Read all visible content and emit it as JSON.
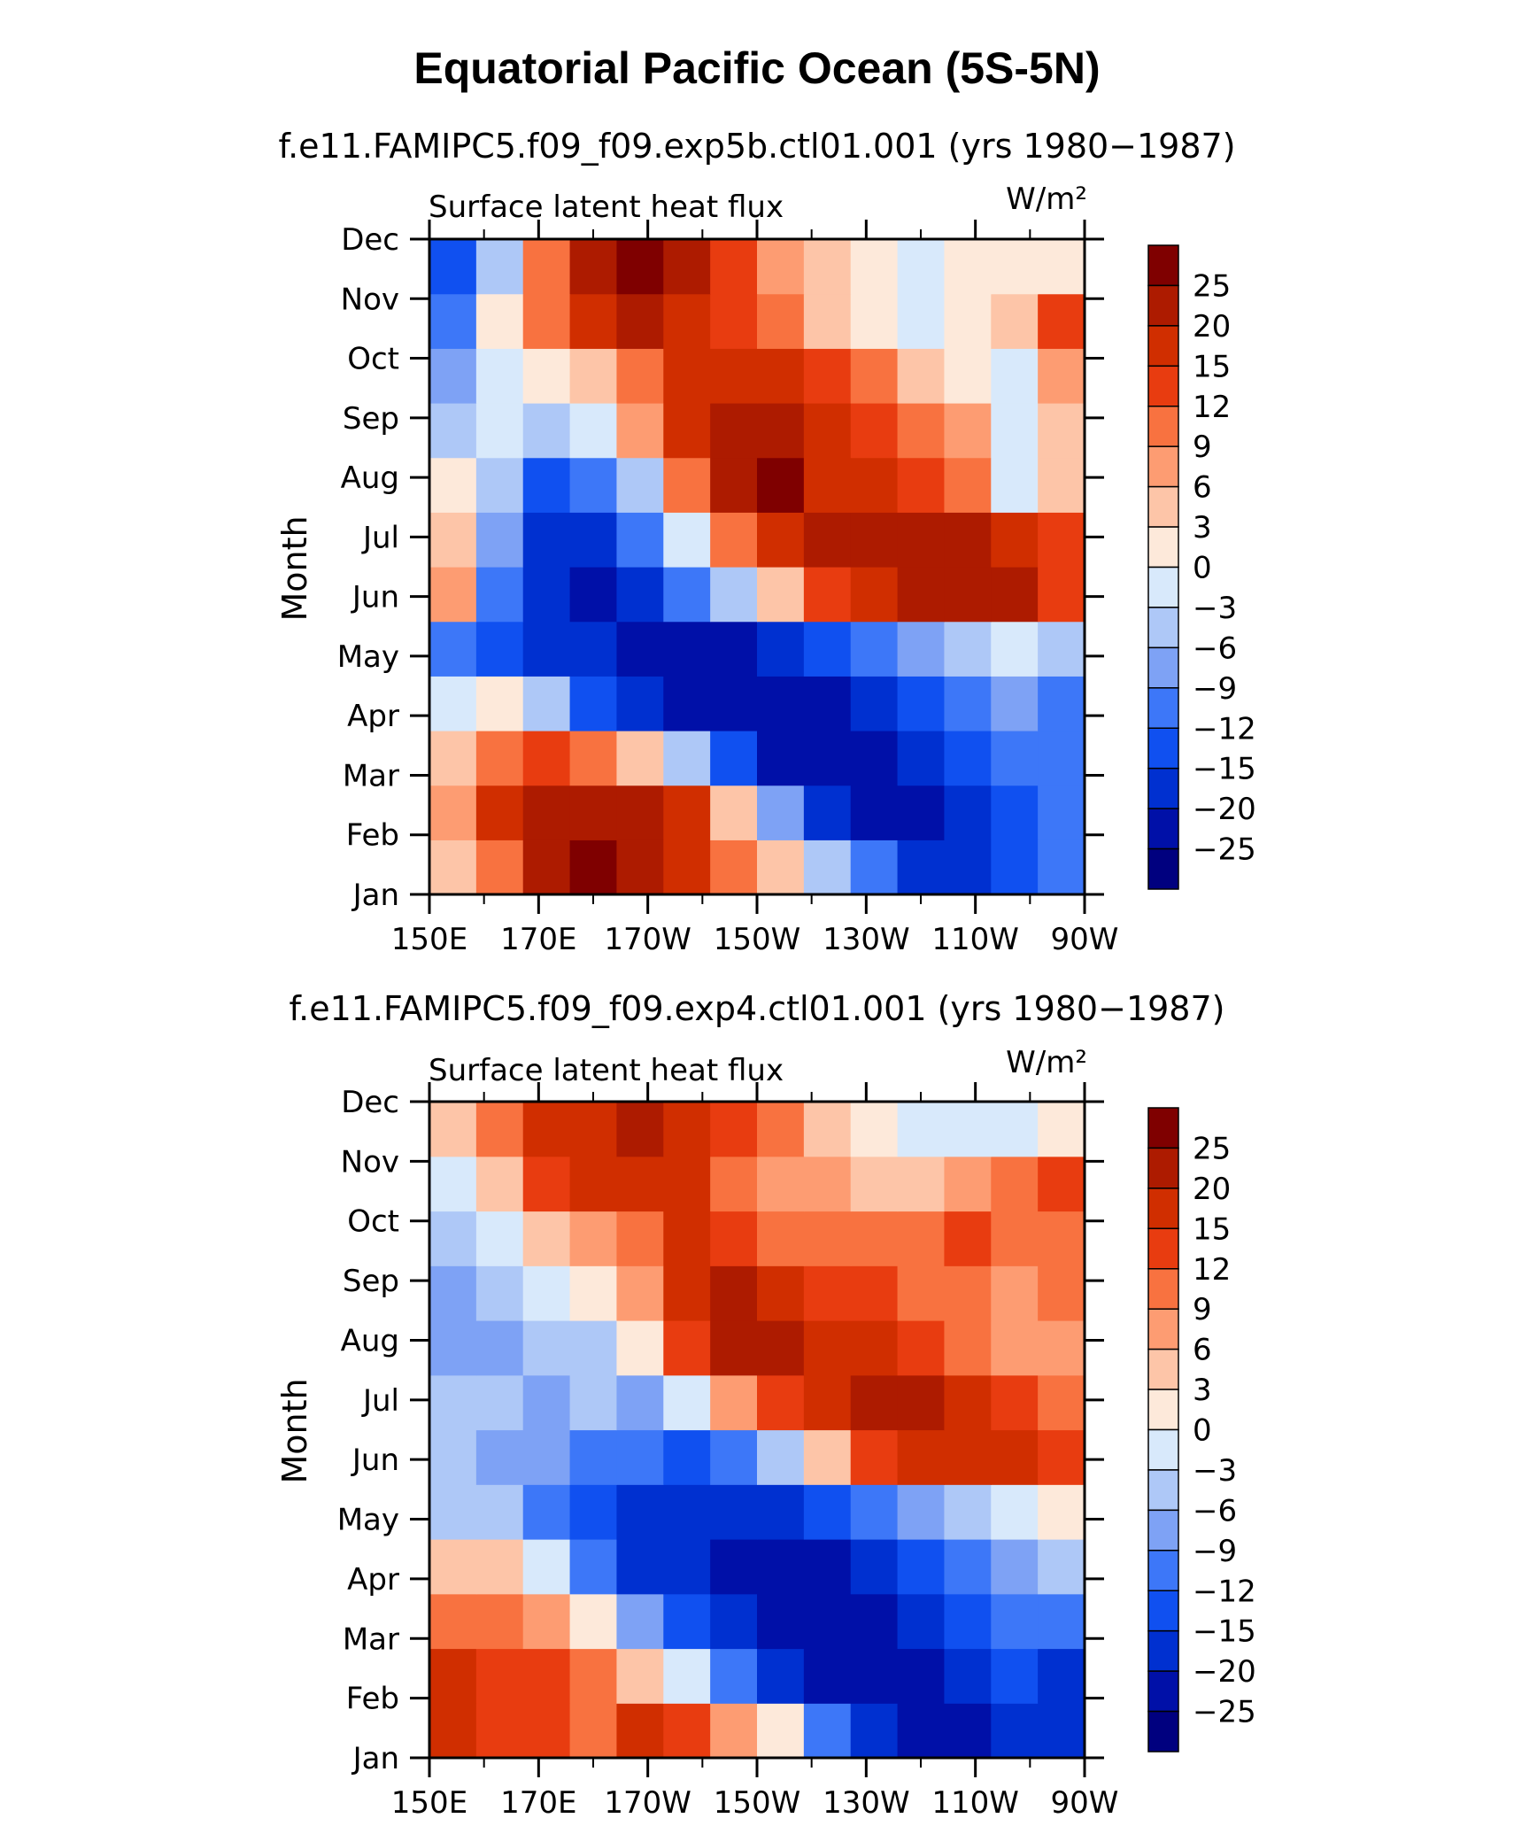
{
  "title": "Equatorial Pacific Ocean (5S-5N)",
  "colors": [
    "#00007f",
    "#0010a8",
    "#0030d0",
    "#1050f0",
    "#3d77f8",
    "#7ea2f5",
    "#aec8f7",
    "#d8e9fb",
    "#fde9da",
    "#fdc5a8",
    "#fd9c72",
    "#f87240",
    "#e83c10",
    "#d02e00",
    "#ad1b00",
    "#7f0000"
  ],
  "chart_data": [
    {
      "type": "heatmap",
      "subtitle": "f.e11.FAMIPC5.f09_f09.exp5b.ctl01.001 (yrs 1980−1987)",
      "variable": "Surface latent heat flux",
      "units": "W/m²",
      "xlabel": "",
      "ylabel": "Month",
      "xticks": [
        "150E",
        "170E",
        "170W",
        "150W",
        "130W",
        "110W",
        "90W"
      ],
      "yticks": [
        "Jan",
        "Feb",
        "Mar",
        "Apr",
        "May",
        "Jun",
        "Jul",
        "Aug",
        "Sep",
        "Oct",
        "Nov",
        "Dec"
      ],
      "colorbar_levels": [
        "25",
        "20",
        "15",
        "12",
        "9",
        "6",
        "3",
        "0",
        "−3",
        "−6",
        "−9",
        "−12",
        "−15",
        "−20",
        "−25"
      ],
      "description_values_by_month": {
        "Jan": [
          3,
          9,
          20,
          25,
          22,
          15,
          9,
          3,
          -6,
          -12,
          -20,
          -20,
          -15,
          -12
        ],
        "Feb": [
          6,
          15,
          20,
          22,
          20,
          15,
          3,
          -9,
          -20,
          -25,
          -25,
          -20,
          -15,
          -12
        ],
        "Mar": [
          3,
          9,
          12,
          9,
          3,
          -6,
          -15,
          -25,
          -25,
          -25,
          -20,
          -15,
          -12,
          -12
        ],
        "Apr": [
          -3,
          0,
          -6,
          -15,
          -20,
          -25,
          -25,
          -25,
          -25,
          -20,
          -15,
          -12,
          -9,
          -12
        ],
        "May": [
          -12,
          -15,
          -20,
          -20,
          -25,
          -25,
          -25,
          -20,
          -15,
          -12,
          -9,
          -6,
          -3,
          -6
        ],
        "Jun": [
          6,
          -12,
          -20,
          -25,
          -20,
          -12,
          -6,
          3,
          12,
          15,
          20,
          20,
          20,
          12
        ],
        "Jul": [
          3,
          -9,
          -20,
          -20,
          -12,
          -3,
          9,
          15,
          20,
          20,
          20,
          20,
          15,
          12
        ],
        "Aug": [
          0,
          -6,
          -15,
          -12,
          -6,
          9,
          20,
          25,
          15,
          15,
          12,
          9,
          -3,
          3
        ],
        "Sep": [
          -6,
          -3,
          -6,
          -3,
          6,
          15,
          20,
          20,
          15,
          12,
          9,
          6,
          -3,
          3
        ],
        "Oct": [
          -9,
          -3,
          0,
          3,
          9,
          15,
          15,
          15,
          12,
          9,
          3,
          0,
          -3,
          6
        ],
        "Nov": [
          -12,
          0,
          9,
          15,
          20,
          15,
          12,
          9,
          3,
          0,
          -3,
          0,
          3,
          12
        ],
        "Dec": [
          -15,
          -6,
          9,
          20,
          25,
          20,
          12,
          6,
          3,
          0,
          -3,
          0,
          0,
          0
        ]
      }
    },
    {
      "type": "heatmap",
      "subtitle": "f.e11.FAMIPC5.f09_f09.exp4.ctl01.001 (yrs 1980−1987)",
      "variable": "Surface latent heat flux",
      "units": "W/m²",
      "xlabel": "",
      "ylabel": "Month",
      "xticks": [
        "150E",
        "170E",
        "170W",
        "150W",
        "130W",
        "110W",
        "90W"
      ],
      "yticks": [
        "Jan",
        "Feb",
        "Mar",
        "Apr",
        "May",
        "Jun",
        "Jul",
        "Aug",
        "Sep",
        "Oct",
        "Nov",
        "Dec"
      ],
      "colorbar_levels": [
        "25",
        "20",
        "15",
        "12",
        "9",
        "6",
        "3",
        "0",
        "−3",
        "−6",
        "−9",
        "−12",
        "−15",
        "−20",
        "−25"
      ],
      "description_values_by_month": {
        "Jan": [
          15,
          12,
          12,
          9,
          15,
          12,
          6,
          0,
          -12,
          -20,
          -25,
          -25,
          -20,
          -20
        ],
        "Feb": [
          15,
          12,
          12,
          9,
          3,
          -3,
          -12,
          -20,
          -25,
          -25,
          -25,
          -20,
          -15,
          -20
        ],
        "Mar": [
          9,
          9,
          6,
          0,
          -9,
          -15,
          -20,
          -25,
          -25,
          -25,
          -20,
          -15,
          -12,
          -12
        ],
        "Apr": [
          3,
          3,
          -3,
          -12,
          -20,
          -20,
          -25,
          -25,
          -25,
          -20,
          -15,
          -12,
          -9,
          -6
        ],
        "May": [
          -6,
          -6,
          -12,
          -15,
          -20,
          -20,
          -20,
          -20,
          -15,
          -12,
          -9,
          -6,
          -3,
          0
        ],
        "Jun": [
          -6,
          -9,
          -9,
          -12,
          -12,
          -15,
          -12,
          -6,
          3,
          12,
          15,
          15,
          15,
          12
        ],
        "Jul": [
          -6,
          -6,
          -9,
          -6,
          -9,
          -3,
          6,
          12,
          15,
          20,
          20,
          15,
          12,
          9
        ],
        "Aug": [
          -9,
          -9,
          -6,
          -6,
          0,
          12,
          20,
          20,
          15,
          15,
          12,
          9,
          6,
          6
        ],
        "Sep": [
          -9,
          -6,
          -3,
          0,
          6,
          15,
          20,
          15,
          12,
          12,
          9,
          9,
          6,
          9
        ],
        "Oct": [
          -6,
          -3,
          3,
          6,
          9,
          15,
          12,
          9,
          9,
          9,
          9,
          12,
          9,
          9
        ],
        "Nov": [
          -3,
          3,
          12,
          15,
          15,
          15,
          9,
          6,
          6,
          3,
          3,
          6,
          9,
          12
        ],
        "Dec": [
          3,
          9,
          15,
          15,
          20,
          15,
          12,
          9,
          3,
          0,
          -3,
          -3,
          -3,
          0
        ]
      }
    }
  ]
}
